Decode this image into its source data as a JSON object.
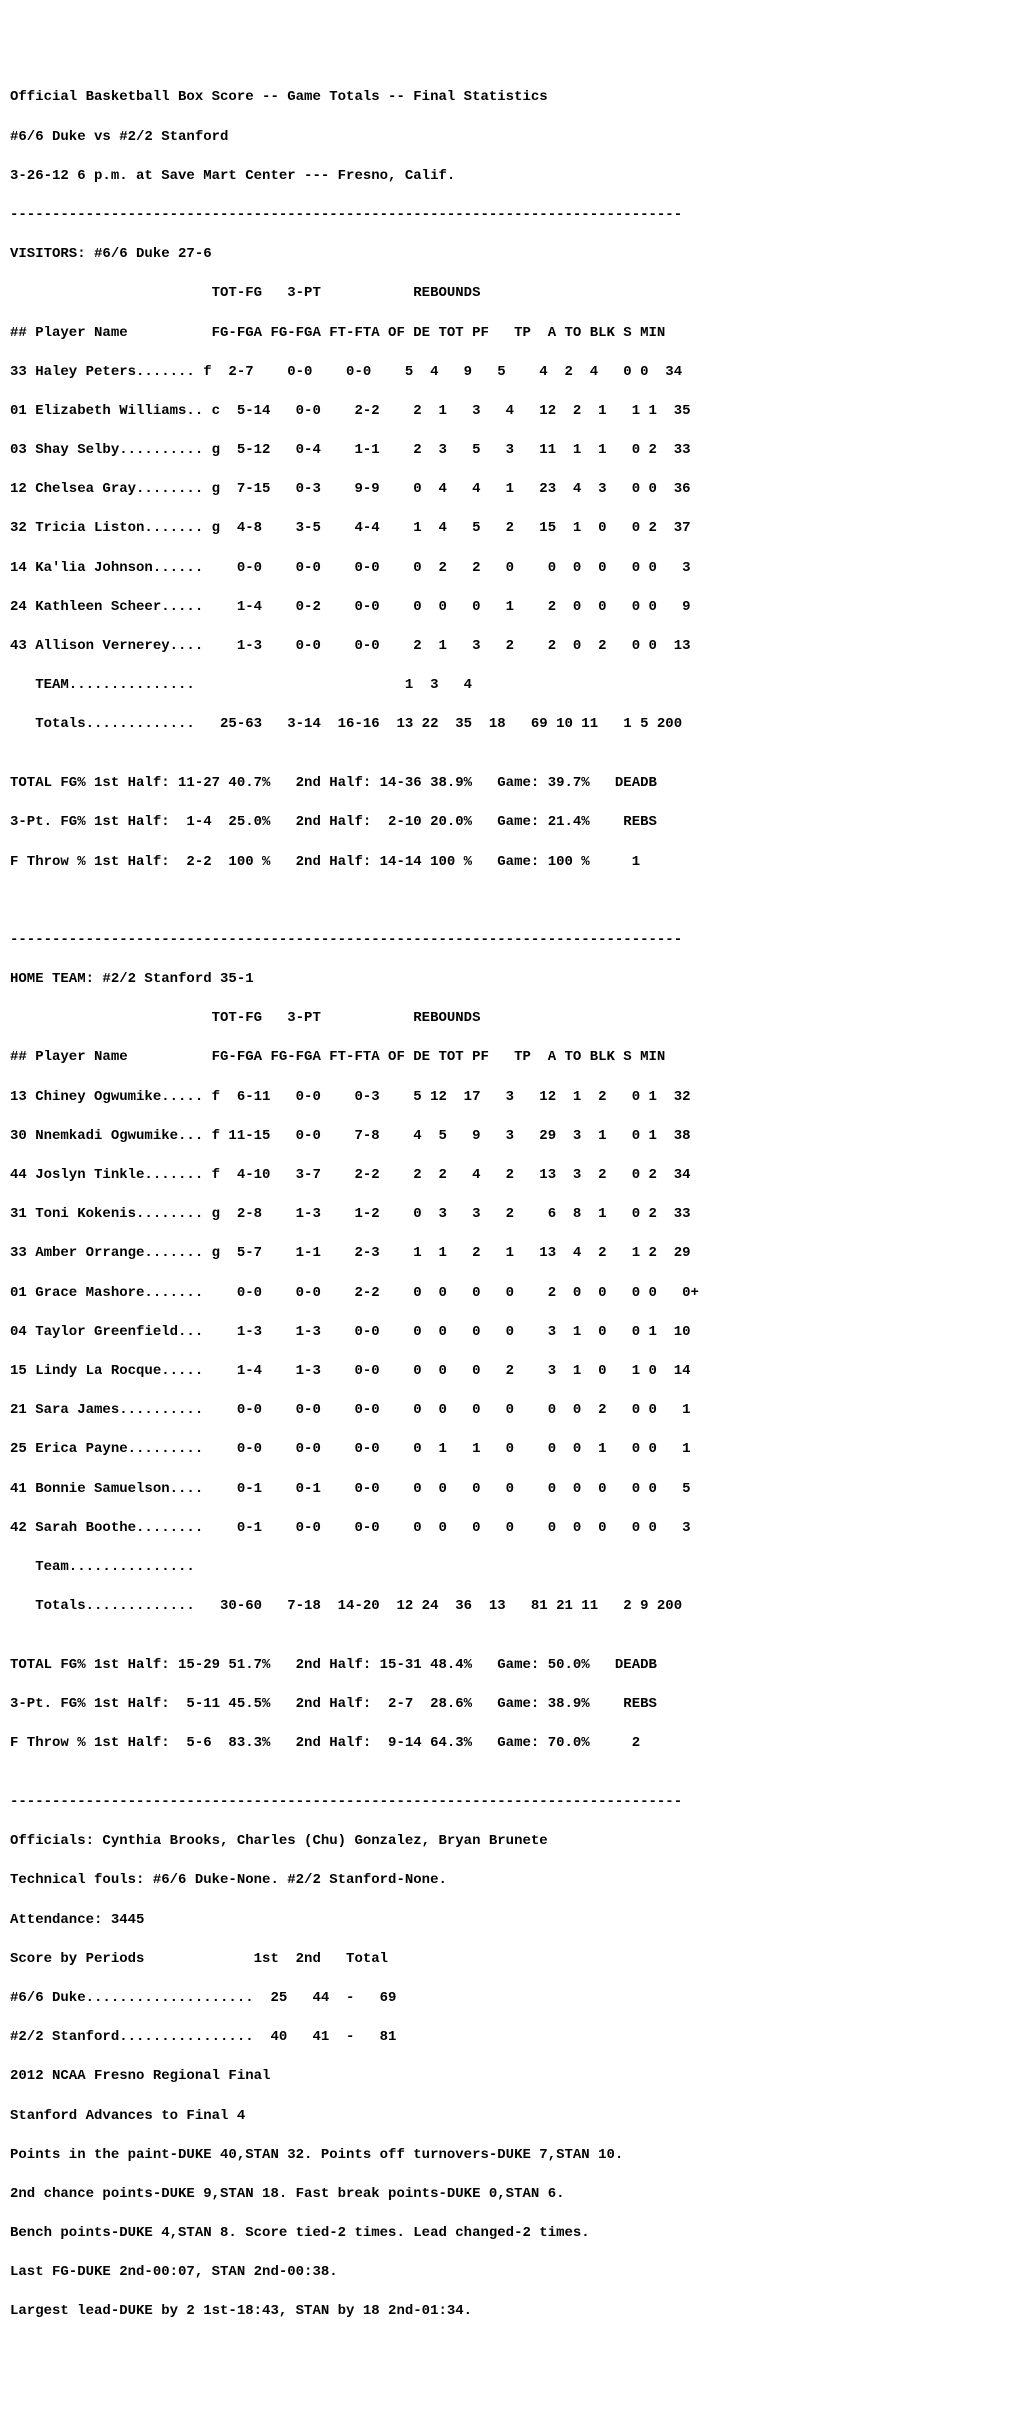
{
  "header": {
    "title": "Official Basketball Box Score -- Game Totals -- Final Statistics",
    "matchup": "#6/6 Duke vs #2/2 Stanford",
    "dateline": "3-26-12 6 p.m. at Save Mart Center --- Fresno, Calif."
  },
  "hr": "--------------------------------------------------------------------------------",
  "visitors": {
    "line": "VISITORS: #6/6 Duke 27-6",
    "col_group_hdr": "                        TOT-FG   3-PT           REBOUNDS",
    "col_hdr": "## Player Name          FG-FGA FG-FGA FT-FTA OF DE TOT PF   TP  A TO BLK S MIN",
    "rows": [
      "33 Haley Peters....... f  2-7    0-0    0-0    5  4   9   5    4  2  4   0 0  34",
      "01 Elizabeth Williams.. c  5-14   0-0    2-2    2  1   3   4   12  2  1   1 1  35",
      "03 Shay Selby.......... g  5-12   0-4    1-1    2  3   5   3   11  1  1   0 2  33",
      "12 Chelsea Gray........ g  7-15   0-3    9-9    0  4   4   1   23  4  3   0 0  36",
      "32 Tricia Liston....... g  4-8    3-5    4-4    1  4   5   2   15  1  0   0 2  37",
      "14 Ka'lia Johnson......    0-0    0-0    0-0    0  2   2   0    0  0  0   0 0   3",
      "24 Kathleen Scheer.....    1-4    0-2    0-0    0  0   0   1    2  0  0   0 0   9",
      "43 Allison Vernerey....    1-3    0-0    0-0    2  1   3   2    2  0  2   0 0  13",
      "   TEAM...............                         1  3   4",
      "   Totals.............   25-63   3-14  16-16  13 22  35  18   69 10 11   1 5 200"
    ],
    "summary": [
      "TOTAL FG% 1st Half: 11-27 40.7%   2nd Half: 14-36 38.9%   Game: 39.7%   DEADB",
      "3-Pt. FG% 1st Half:  1-4  25.0%   2nd Half:  2-10 20.0%   Game: 21.4%    REBS",
      "F Throw % 1st Half:  2-2  100 %   2nd Half: 14-14 100 %   Game: 100 %     1"
    ]
  },
  "home": {
    "line": "HOME TEAM: #2/2 Stanford 35-1",
    "col_group_hdr": "                        TOT-FG   3-PT           REBOUNDS",
    "col_hdr": "## Player Name          FG-FGA FG-FGA FT-FTA OF DE TOT PF   TP  A TO BLK S MIN",
    "rows": [
      "13 Chiney Ogwumike..... f  6-11   0-0    0-3    5 12  17   3   12  1  2   0 1  32",
      "30 Nnemkadi Ogwumike... f 11-15   0-0    7-8    4  5   9   3   29  3  1   0 1  38",
      "44 Joslyn Tinkle....... f  4-10   3-7    2-2    2  2   4   2   13  3  2   0 2  34",
      "31 Toni Kokenis........ g  2-8    1-3    1-2    0  3   3   2    6  8  1   0 2  33",
      "33 Amber Orrange....... g  5-7    1-1    2-3    1  1   2   1   13  4  2   1 2  29",
      "01 Grace Mashore.......    0-0    0-0    2-2    0  0   0   0    2  0  0   0 0   0+",
      "04 Taylor Greenfield...    1-3    1-3    0-0    0  0   0   0    3  1  0   0 1  10",
      "15 Lindy La Rocque.....    1-4    1-3    0-0    0  0   0   2    3  1  0   1 0  14",
      "21 Sara James..........    0-0    0-0    0-0    0  0   0   0    0  0  2   0 0   1",
      "25 Erica Payne.........    0-0    0-0    0-0    0  1   1   0    0  0  1   0 0   1",
      "41 Bonnie Samuelson....    0-1    0-1    0-0    0  0   0   0    0  0  0   0 0   5",
      "42 Sarah Boothe........    0-1    0-0    0-0    0  0   0   0    0  0  0   0 0   3",
      "   Team...............",
      "   Totals.............   30-60   7-18  14-20  12 24  36  13   81 21 11   2 9 200"
    ],
    "summary": [
      "TOTAL FG% 1st Half: 15-29 51.7%   2nd Half: 15-31 48.4%   Game: 50.0%   DEADB",
      "3-Pt. FG% 1st Half:  5-11 45.5%   2nd Half:  2-7  28.6%   Game: 38.9%    REBS",
      "F Throw % 1st Half:  5-6  83.3%   2nd Half:  9-14 64.3%   Game: 70.0%     2"
    ]
  },
  "footer": {
    "officials": "Officials: Cynthia Brooks, Charles (Chu) Gonzalez, Bryan Brunete",
    "technicals": "Technical fouls: #6/6 Duke-None. #2/2 Stanford-None.",
    "attendance": "Attendance: 3445",
    "score_hdr": "Score by Periods             1st  2nd   Total",
    "score_away": "#6/6 Duke....................  25   44  -   69",
    "score_home": "#2/2 Stanford................  40   41  -   81",
    "event": "2012 NCAA Fresno Regional Final",
    "result": "Stanford Advances to Final 4",
    "notes": [
      "Points in the paint-DUKE 40,STAN 32. Points off turnovers-DUKE 7,STAN 10.",
      "2nd chance points-DUKE 9,STAN 18. Fast break points-DUKE 0,STAN 6.",
      "Bench points-DUKE 4,STAN 8. Score tied-2 times. Lead changed-2 times.",
      "Last FG-DUKE 2nd-00:07, STAN 2nd-00:38.",
      "Largest lead-DUKE by 2 1st-18:43, STAN by 18 2nd-01:34."
    ]
  }
}
